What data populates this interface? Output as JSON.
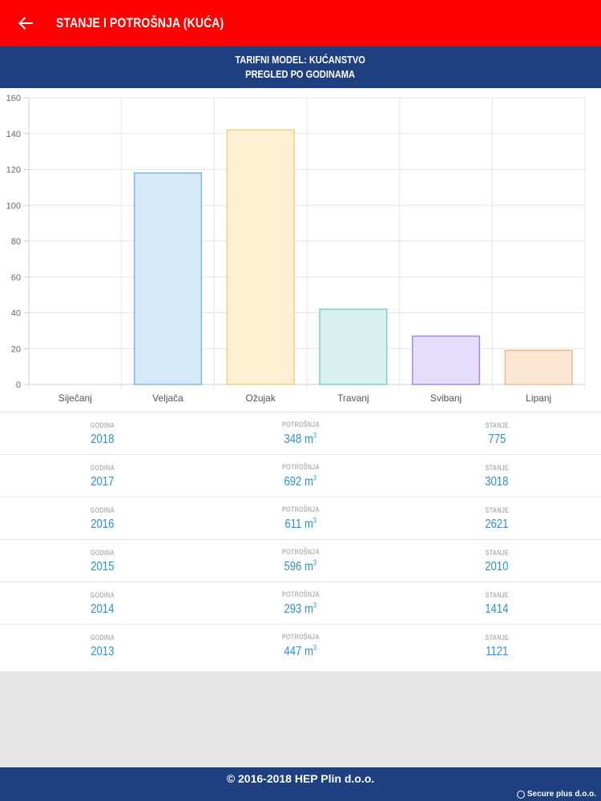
{
  "appbar": {
    "title": "STANJE I POTROŠNJA (KUĆA)",
    "back_icon": "arrow-left-icon",
    "color": "#ff0000"
  },
  "subheader": {
    "line1": "TARIFNI MODEL: KUĆANSTVO",
    "line2": "PREGLED PO GODINAMA",
    "color": "#1e3f80"
  },
  "chart_data": {
    "type": "bar",
    "categories": [
      "Siječanj",
      "Veljača",
      "Ožujak",
      "Travanj",
      "Svibanj",
      "Lipanj"
    ],
    "values": [
      0,
      118,
      142,
      42,
      27,
      19
    ],
    "ylim": [
      0,
      160
    ],
    "yticks": [
      0,
      20,
      40,
      60,
      80,
      100,
      120,
      140,
      160
    ],
    "grid": true,
    "colors": {
      "fill": [
        "#d6e9f8",
        "#d6e9f8",
        "#fdefd2",
        "#d8f1ef",
        "#e6ddfb",
        "#fbe6d3"
      ],
      "stroke": [
        "#7fb8e6",
        "#7fb8e6",
        "#f5cf7b",
        "#7fcfc5",
        "#a586ea",
        "#f2b98a"
      ]
    }
  },
  "table": {
    "labels": {
      "year": "GODINA",
      "consumption": "POTROŠNJA",
      "state": "STANJE"
    },
    "unit": "m",
    "unit_exp": "3",
    "rows": [
      {
        "year": "2018",
        "consumption": "348",
        "state": "775"
      },
      {
        "year": "2017",
        "consumption": "692",
        "state": "3018"
      },
      {
        "year": "2016",
        "consumption": "611",
        "state": "2621"
      },
      {
        "year": "2015",
        "consumption": "596",
        "state": "2010"
      },
      {
        "year": "2014",
        "consumption": "293",
        "state": "1414"
      },
      {
        "year": "2013",
        "consumption": "447",
        "state": "1121"
      }
    ]
  },
  "footer": {
    "copyright": "© 2016-2018 HEP Plin d.o.o.",
    "secure": "Secure plus d.o.o.",
    "secure_icon": "secure-plus-logo-icon"
  }
}
